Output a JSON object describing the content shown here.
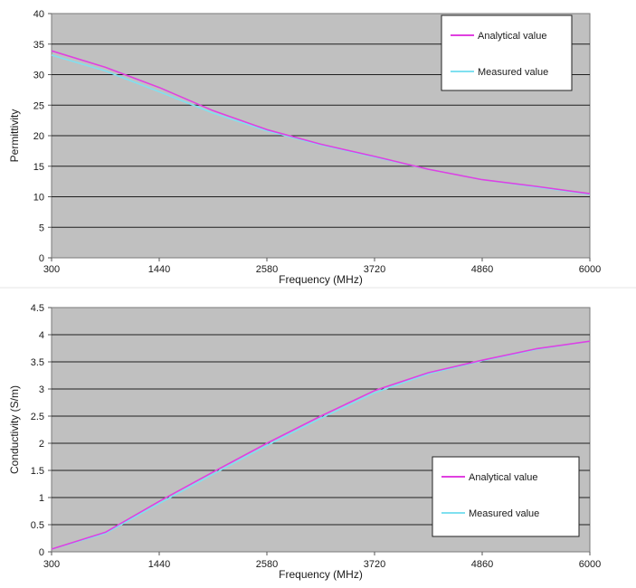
{
  "chart_data": [
    {
      "type": "line",
      "title": "",
      "xlabel": "Frequency (MHz)",
      "ylabel": "Permittivity",
      "xlim": [
        300,
        6000
      ],
      "ylim": [
        0,
        40
      ],
      "x_ticks": [
        "300",
        "1440",
        "2580",
        "3720",
        "4860",
        "6000"
      ],
      "y_ticks": [
        "0",
        "5",
        "10",
        "15",
        "20",
        "25",
        "30",
        "35",
        "40"
      ],
      "grid": true,
      "legend_position": "top-right",
      "x": [
        300,
        870,
        1440,
        2010,
        2580,
        3150,
        3720,
        4290,
        4860,
        5430,
        6000
      ],
      "series": [
        {
          "name": "Analytical value",
          "color": "#e040e0",
          "values": [
            33.9,
            31.2,
            27.9,
            24.1,
            21.0,
            18.6,
            16.6,
            14.5,
            12.8,
            11.7,
            10.5
          ]
        },
        {
          "name": "Measured value",
          "color": "#7fe0f0",
          "values": [
            33.2,
            30.6,
            27.2,
            23.7,
            20.8,
            18.5,
            16.5,
            14.5,
            12.8,
            11.6,
            10.4
          ]
        }
      ]
    },
    {
      "type": "line",
      "title": "",
      "xlabel": "Frequency (MHz)",
      "ylabel": "Conductivity (S/m)",
      "xlim": [
        300,
        6000
      ],
      "ylim": [
        0,
        4.5
      ],
      "x_ticks": [
        "300",
        "1440",
        "2580",
        "3720",
        "4860",
        "6000"
      ],
      "y_ticks": [
        "0",
        "0.5",
        "1",
        "1.5",
        "2",
        "2.5",
        "3",
        "3.5",
        "4",
        "4.5"
      ],
      "grid": true,
      "legend_position": "bottom-right",
      "x": [
        300,
        870,
        1440,
        2010,
        2580,
        3150,
        3720,
        4290,
        4860,
        5430,
        6000
      ],
      "series": [
        {
          "name": "Analytical value",
          "color": "#e040e0",
          "values": [
            0.05,
            0.36,
            0.93,
            1.47,
            2.0,
            2.5,
            2.97,
            3.3,
            3.53,
            3.74,
            3.88
          ]
        },
        {
          "name": "Measured value",
          "color": "#7fe0f0",
          "values": [
            0.05,
            0.34,
            0.89,
            1.43,
            1.96,
            2.46,
            2.93,
            3.28,
            3.52,
            3.73,
            3.88
          ]
        }
      ]
    }
  ]
}
